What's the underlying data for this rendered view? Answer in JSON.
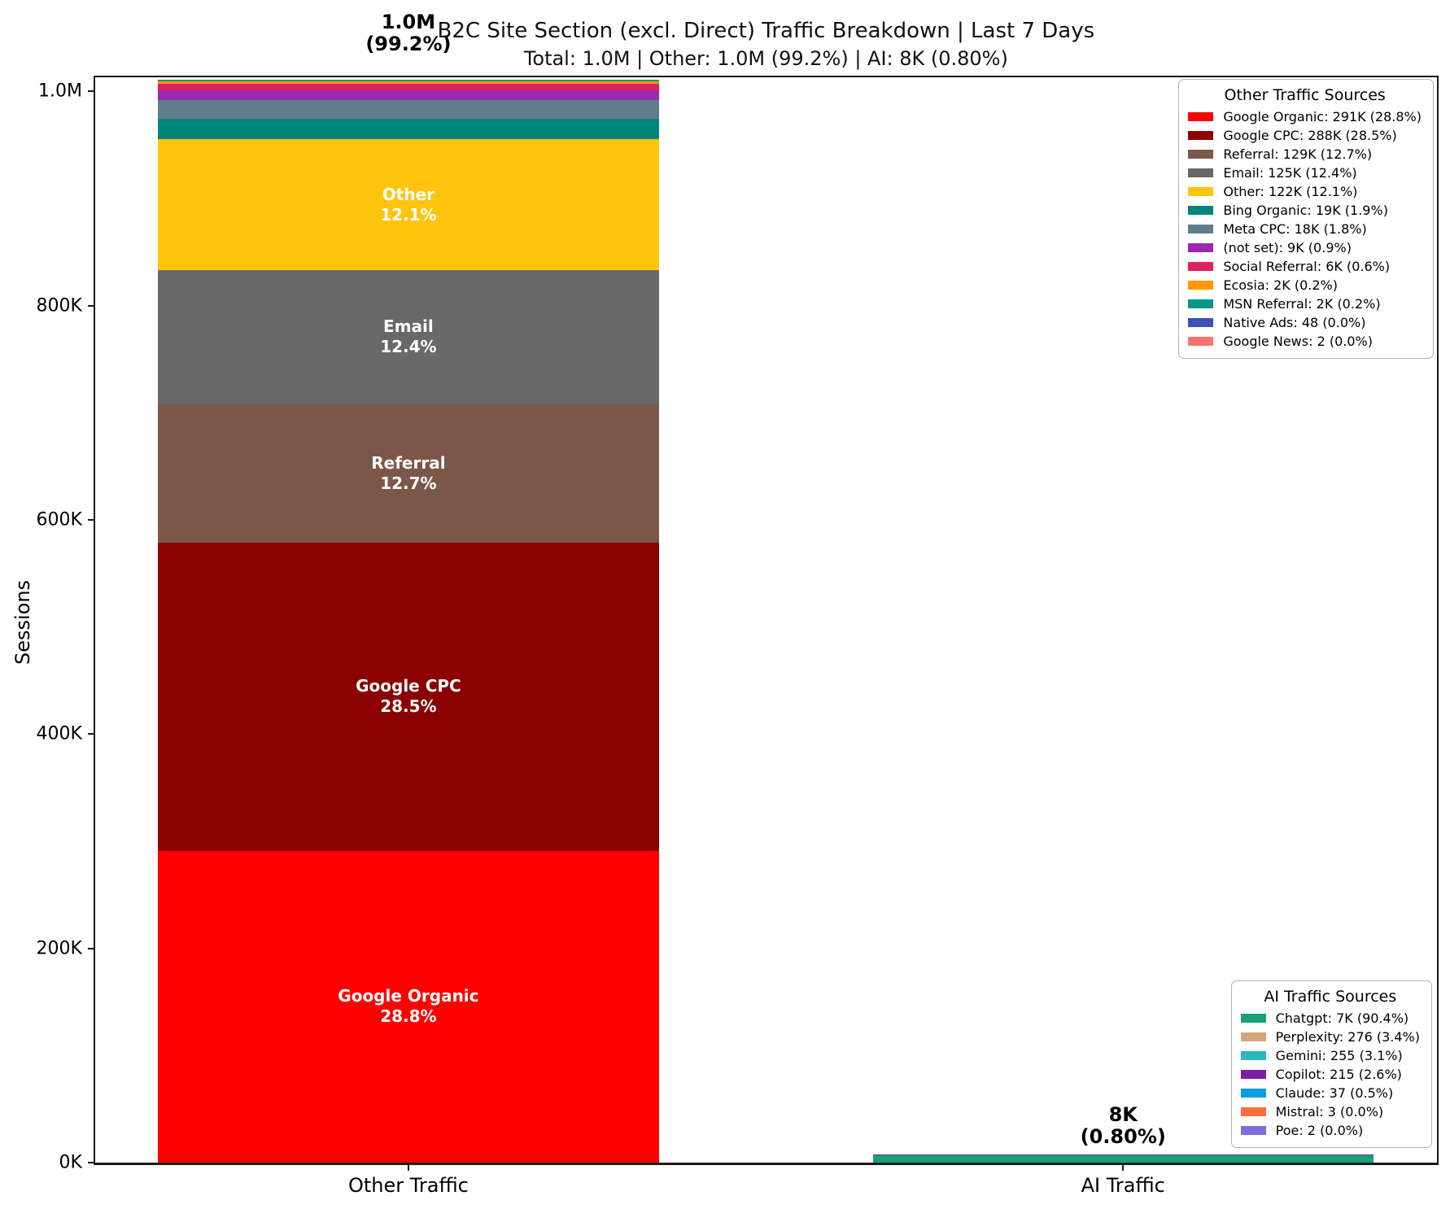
{
  "chart_data": {
    "type": "stacked_bar",
    "title": "B2C Site Section (excl. Direct) Traffic Breakdown | Last 7 Days",
    "subtitle": "Total: 1.0M | Other: 1.0M (99.2%) | AI: 8K (0.80%)",
    "ylabel": "Sessions",
    "ylim": [
      0,
      1013000
    ],
    "grid": false,
    "yticks": [
      {
        "value": 0,
        "label": "0K"
      },
      {
        "value": 200000,
        "label": "200K"
      },
      {
        "value": 400000,
        "label": "400K"
      },
      {
        "value": 600000,
        "label": "600K"
      },
      {
        "value": 800000,
        "label": "800K"
      },
      {
        "value": 1000000,
        "label": "1.0M"
      }
    ],
    "categories": [
      "Other Traffic",
      "AI Traffic"
    ],
    "bars": [
      {
        "category": "Other Traffic",
        "total_label": {
          "line1": "1.0M",
          "line2": "(99.2%)"
        },
        "segments": [
          {
            "name": "Google Organic",
            "value": 291000,
            "pct": "28.8%",
            "color": "#FF0000",
            "show_label": true
          },
          {
            "name": "Google CPC",
            "value": 288000,
            "pct": "28.5%",
            "color": "#8B0000",
            "show_label": true
          },
          {
            "name": "Referral",
            "value": 129000,
            "pct": "12.7%",
            "color": "#7B574A",
            "show_label": true
          },
          {
            "name": "Email",
            "value": 125000,
            "pct": "12.4%",
            "color": "#686868",
            "show_label": true
          },
          {
            "name": "Other",
            "value": 122000,
            "pct": "12.1%",
            "color": "#FFC40D",
            "show_label": true
          },
          {
            "name": "Bing Organic",
            "value": 19000,
            "pct": "1.9%",
            "color": "#00857C",
            "show_label": false
          },
          {
            "name": "Meta CPC",
            "value": 18000,
            "pct": "1.8%",
            "color": "#5F7D8C",
            "show_label": false
          },
          {
            "name": "(not set)",
            "value": 9000,
            "pct": "0.9%",
            "color": "#9C27B0",
            "show_label": false
          },
          {
            "name": "Social Referral",
            "value": 6000,
            "pct": "0.6%",
            "color": "#DE2163",
            "show_label": false
          },
          {
            "name": "Ecosia",
            "value": 2000,
            "pct": "0.2%",
            "color": "#FF9800",
            "show_label": false
          },
          {
            "name": "MSN Referral",
            "value": 2000,
            "pct": "0.2%",
            "color": "#009688",
            "show_label": false
          },
          {
            "name": "Native Ads",
            "value": 48,
            "pct": "0.0%",
            "color": "#3F51B5",
            "show_label": false
          },
          {
            "name": "Google News",
            "value": 2,
            "pct": "0.0%",
            "color": "#F7726E",
            "show_label": false
          }
        ]
      },
      {
        "category": "AI Traffic",
        "total_label": {
          "line1": "8K",
          "line2": "(0.80%)"
        },
        "segments": [
          {
            "name": "Chatgpt",
            "value": 7000,
            "pct": "90.4%",
            "color": "#16A07D",
            "show_label": false
          },
          {
            "name": "Perplexity",
            "value": 276,
            "pct": "3.4%",
            "color": "#D2A676",
            "show_label": false
          },
          {
            "name": "Gemini",
            "value": 255,
            "pct": "3.1%",
            "color": "#27B9BE",
            "show_label": false
          },
          {
            "name": "Copilot",
            "value": 215,
            "pct": "2.6%",
            "color": "#7B1FA2",
            "show_label": false
          },
          {
            "name": "Claude",
            "value": 37,
            "pct": "0.5%",
            "color": "#069DE4",
            "show_label": false
          },
          {
            "name": "Mistral",
            "value": 3,
            "pct": "0.0%",
            "color": "#F96F3D",
            "show_label": false
          },
          {
            "name": "Poe",
            "value": 2,
            "pct": "0.0%",
            "color": "#7C6FDD",
            "show_label": false
          }
        ]
      }
    ],
    "legends": [
      {
        "title": "Other Traffic Sources",
        "position": "top-right",
        "items": [
          {
            "label": "Google Organic: 291K (28.8%)",
            "color": "#FF0000"
          },
          {
            "label": "Google CPC: 288K (28.5%)",
            "color": "#8B0000"
          },
          {
            "label": "Referral: 129K (12.7%)",
            "color": "#7B574A"
          },
          {
            "label": "Email: 125K (12.4%)",
            "color": "#686868"
          },
          {
            "label": "Other: 122K (12.1%)",
            "color": "#FFC40D"
          },
          {
            "label": "Bing Organic: 19K (1.9%)",
            "color": "#00857C"
          },
          {
            "label": "Meta CPC: 18K (1.8%)",
            "color": "#5F7D8C"
          },
          {
            "label": "(not set): 9K (0.9%)",
            "color": "#9C27B0"
          },
          {
            "label": "Social Referral: 6K (0.6%)",
            "color": "#DE2163"
          },
          {
            "label": "Ecosia: 2K (0.2%)",
            "color": "#FF9800"
          },
          {
            "label": "MSN Referral: 2K (0.2%)",
            "color": "#009688"
          },
          {
            "label": "Native Ads: 48 (0.0%)",
            "color": "#3F51B5"
          },
          {
            "label": "Google News: 2 (0.0%)",
            "color": "#F7726E"
          }
        ]
      },
      {
        "title": "AI Traffic Sources",
        "position": "bottom-right",
        "items": [
          {
            "label": "Chatgpt: 7K (90.4%)",
            "color": "#16A07D"
          },
          {
            "label": "Perplexity: 276 (3.4%)",
            "color": "#D2A676"
          },
          {
            "label": "Gemini: 255 (3.1%)",
            "color": "#27B9BE"
          },
          {
            "label": "Copilot: 215 (2.6%)",
            "color": "#7B1FA2"
          },
          {
            "label": "Claude: 37 (0.5%)",
            "color": "#069DE4"
          },
          {
            "label": "Mistral: 3 (0.0%)",
            "color": "#F96F3D"
          },
          {
            "label": "Poe: 2 (0.0%)",
            "color": "#7C6FDD"
          }
        ]
      }
    ]
  }
}
